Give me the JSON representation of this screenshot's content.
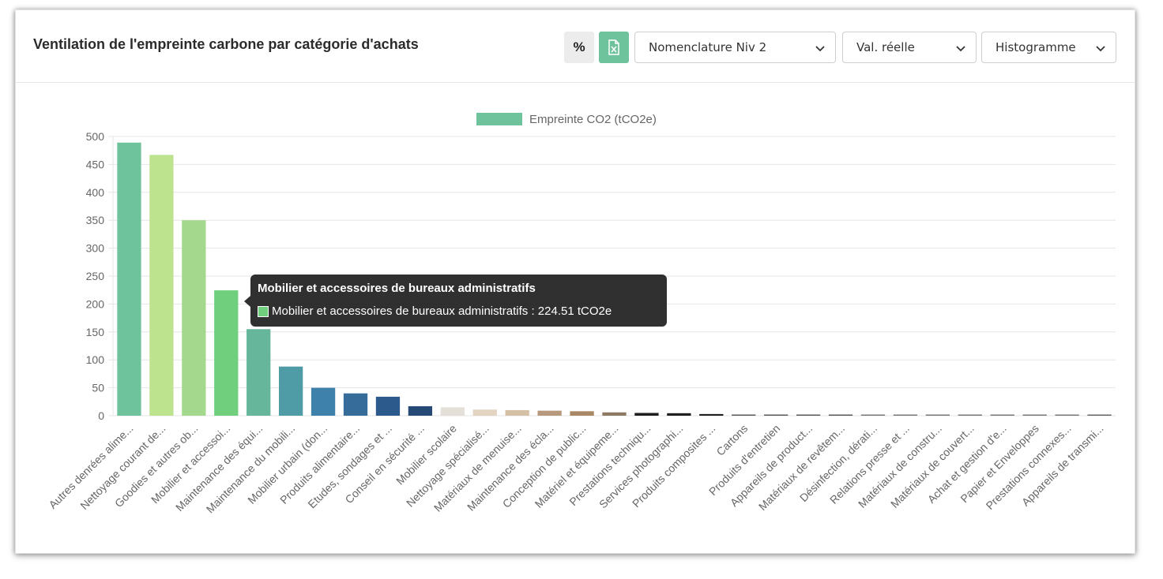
{
  "header": {
    "title": "Ventilation de l'empreinte carbone par catégorie d'achats",
    "percent_button": "%",
    "excel_icon": "excel-export-icon"
  },
  "selects": {
    "nomenclature": "Nomenclature Niv 2",
    "valeur": "Val. réelle",
    "type": "Histogramme"
  },
  "tooltip": {
    "title": "Mobilier et accessoires de bureaux administratifs",
    "text": "Mobilier et accessoires de bureaux administratifs : 224.51 tCO2e",
    "color": "#6fcf7d"
  },
  "chart_data": {
    "type": "bar",
    "title": "",
    "xlabel": "",
    "ylabel": "",
    "ylim": [
      0,
      500
    ],
    "yticks": [
      0,
      50,
      100,
      150,
      200,
      250,
      300,
      350,
      400,
      450,
      500
    ],
    "grid": true,
    "legend_position": "top",
    "series": [
      {
        "name": "Empreinte CO2 (tCO2e)",
        "legend_color": "#6ec39c"
      }
    ],
    "categories": [
      "Autres denrées alime...",
      "Nettoyage courant de...",
      "Goodies et autres ob...",
      "Mobilier et accessoi...",
      "Maintenance des équi...",
      "Maintenance du mobili...",
      "Mobilier urbain (don...",
      "Produits alimentaire...",
      "Etudes, sondages et ...",
      "Conseil en sécurité ...",
      "Mobilier scolaire",
      "Nettoyage spécialisé...",
      "Matériaux de menuise...",
      "Maintenance des écla...",
      "Conception de public...",
      "Matériel et équipeme...",
      "Prestations techniqu...",
      "Services photographi...",
      "Produits composites ...",
      "Cartons",
      "Produits d'entretien",
      "Appareils de product...",
      "Matériaux de revêtem...",
      "Désinfection, dérati...",
      "Relations presse et ...",
      "Matériaux de constru...",
      "Matériaux de couvert...",
      "Achat et gestion d'e...",
      "Papier et Enveloppes",
      "Prestations connexes...",
      "Appareils de transmi..."
    ],
    "values": [
      489,
      467,
      350,
      224.51,
      155,
      88,
      50,
      40,
      34,
      17,
      15,
      11,
      10,
      9,
      8,
      6,
      5,
      4.5,
      3,
      2,
      1.5,
      1.5,
      1.2,
      1,
      0.8,
      0.6,
      0.6,
      0.8,
      1,
      1.2,
      1.5
    ],
    "colors": [
      "#6ec39c",
      "#bde38f",
      "#a3d88d",
      "#6fcf7d",
      "#66b69c",
      "#4f9ba6",
      "#3e82ac",
      "#366c9a",
      "#2d5a8d",
      "#244a75",
      "#e4dfd8",
      "#e2d4c0",
      "#d6c0a5",
      "#b79a7e",
      "#a98865",
      "#8e7a63",
      "#1f1f1f",
      "#1f1f1f",
      "#1f1f1f",
      "#5a5a5a",
      "#5a5a5a",
      "#5a5a5a",
      "#5a5a5a",
      "#777777",
      "#777777",
      "#777777",
      "#777777",
      "#777777",
      "#777777",
      "#777777",
      "#666666"
    ]
  }
}
